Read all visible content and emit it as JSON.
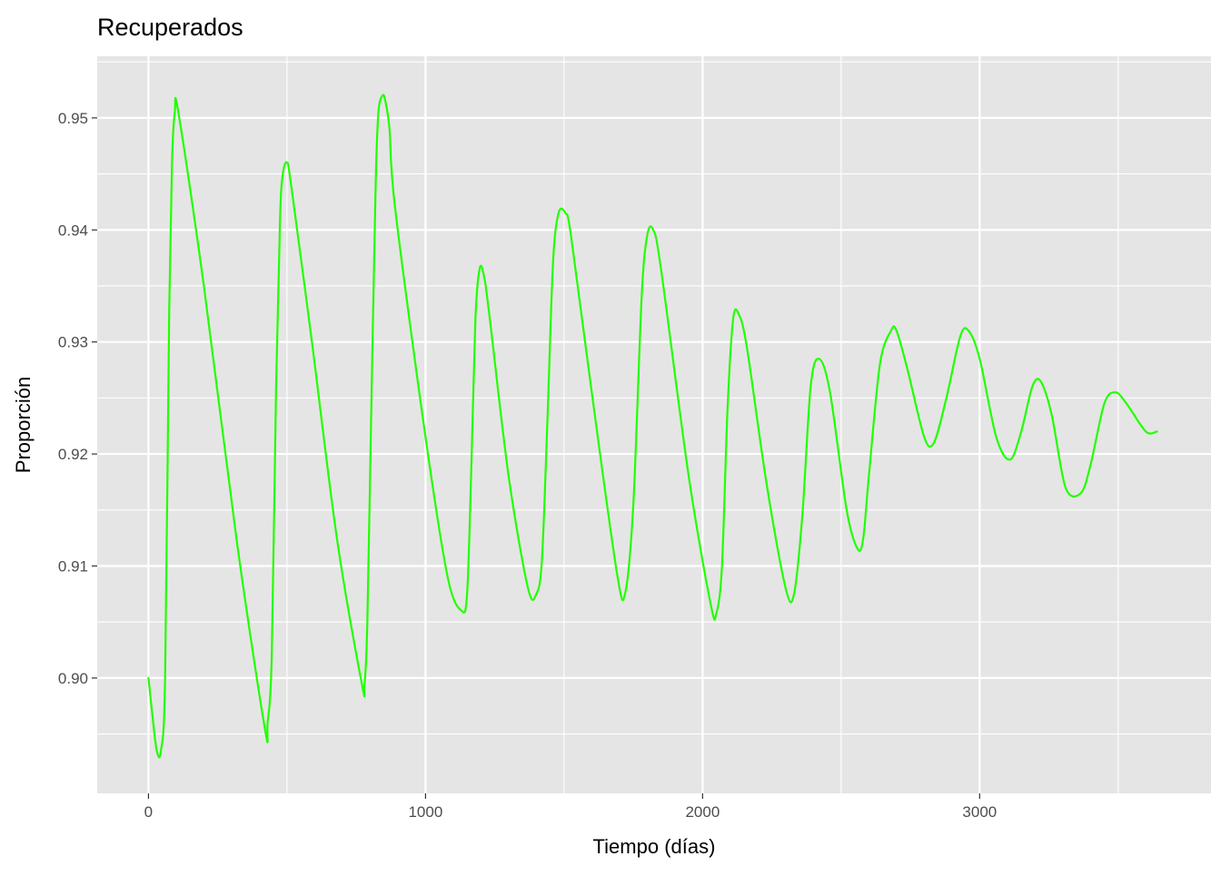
{
  "chart_data": {
    "type": "line",
    "title": "Recuperados",
    "xlabel": "Tiempo (días)",
    "ylabel": "Proporción",
    "xlim": [
      -185,
      3835
    ],
    "ylim": [
      0.8897,
      0.9555
    ],
    "x_ticks": [
      0,
      1000,
      2000,
      3000
    ],
    "x_tick_labels": [
      "0",
      "1000",
      "2000",
      "3000"
    ],
    "y_ticks": [
      0.9,
      0.91,
      0.92,
      0.93,
      0.94,
      0.95
    ],
    "y_tick_labels": [
      "0.90",
      "0.91",
      "0.92",
      "0.93",
      "0.94",
      "0.95"
    ],
    "grid": true,
    "legend": "none",
    "colors": {
      "panel": "#e5e5e5",
      "grid": "#ffffff",
      "line": "#22ff00",
      "tick_text": "#4d4d4d",
      "text": "#000000"
    },
    "series": [
      {
        "x": [
          0,
          15,
          30,
          45,
          60,
          75,
          85,
          95,
          108,
          200,
          320,
          420,
          430,
          445,
          460,
          475,
          485,
          500,
          515,
          590,
          680,
          770,
          780,
          790,
          805,
          820,
          830,
          845,
          855,
          870,
          890,
          1000,
          1080,
          1130,
          1150,
          1165,
          1180,
          1195,
          1210,
          1230,
          1300,
          1370,
          1400,
          1420,
          1440,
          1460,
          1480,
          1505,
          1525,
          1600,
          1690,
          1720,
          1750,
          1780,
          1800,
          1822,
          1850,
          1950,
          2030,
          2050,
          2070,
          2090,
          2110,
          2130,
          2160,
          2230,
          2300,
          2330,
          2360,
          2390,
          2420,
          2460,
          2520,
          2560,
          2580,
          2600,
          2640,
          2680,
          2700,
          2740,
          2800,
          2835,
          2880,
          2930,
          2960,
          3000,
          3060,
          3110,
          3150,
          3190,
          3220,
          3260,
          3310,
          3365,
          3400,
          3450,
          3490,
          3530,
          3600,
          3640
        ],
        "y": [
          0.9,
          0.8965,
          0.8935,
          0.8935,
          0.9,
          0.933,
          0.946,
          0.9505,
          0.9505,
          0.935,
          0.912,
          0.8955,
          0.896,
          0.902,
          0.925,
          0.941,
          0.945,
          0.946,
          0.944,
          0.93,
          0.9125,
          0.8995,
          0.8995,
          0.905,
          0.925,
          0.944,
          0.9505,
          0.952,
          0.9515,
          0.949,
          0.942,
          0.9215,
          0.909,
          0.906,
          0.9075,
          0.9185,
          0.932,
          0.9365,
          0.936,
          0.9325,
          0.918,
          0.908,
          0.9075,
          0.9105,
          0.923,
          0.937,
          0.9415,
          0.9415,
          0.9395,
          0.9255,
          0.9095,
          0.9075,
          0.9155,
          0.934,
          0.9395,
          0.94,
          0.9365,
          0.918,
          0.9065,
          0.9058,
          0.91,
          0.924,
          0.932,
          0.9325,
          0.9295,
          0.9175,
          0.908,
          0.9075,
          0.9145,
          0.926,
          0.9285,
          0.9255,
          0.915,
          0.9115,
          0.9125,
          0.918,
          0.928,
          0.931,
          0.931,
          0.9275,
          0.9215,
          0.921,
          0.925,
          0.9305,
          0.931,
          0.9285,
          0.9215,
          0.9195,
          0.922,
          0.926,
          0.9265,
          0.9235,
          0.917,
          0.9165,
          0.919,
          0.9245,
          0.9255,
          0.9245,
          0.922,
          0.922
        ]
      }
    ]
  }
}
